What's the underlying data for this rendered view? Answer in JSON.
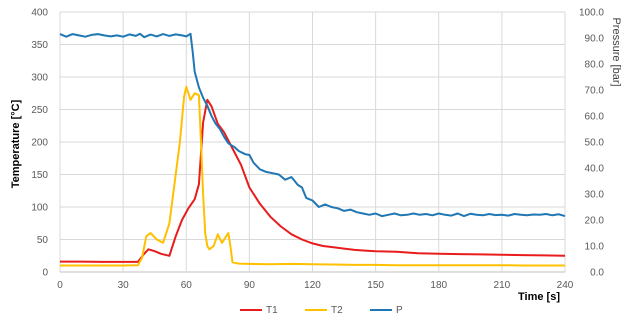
{
  "chart_data": {
    "type": "line",
    "title": "",
    "xlabel": "Time [s]",
    "ylabel_left": "Temperature [°C]",
    "ylabel_right": "Pressure [bar]",
    "xlim": [
      0,
      240
    ],
    "ylim_left": [
      0,
      400
    ],
    "ylim_right": [
      0,
      100
    ],
    "grid": true,
    "legend_position": "bottom",
    "x_ticks": [
      "0",
      "30",
      "60",
      "90",
      "120",
      "150",
      "180",
      "210",
      "240"
    ],
    "y_left_ticks": [
      "0",
      "50",
      "100",
      "150",
      "200",
      "250",
      "300",
      "350",
      "400"
    ],
    "y_right_ticks": [
      "0.0",
      "10.0",
      "20.0",
      "30.0",
      "40.0",
      "50.0",
      "60.0",
      "70.0",
      "80.0",
      "90.0",
      "100.0"
    ],
    "series": [
      {
        "name": "T1",
        "axis": "left",
        "color": "#e81c1c",
        "points": [
          [
            0,
            16
          ],
          [
            10,
            16
          ],
          [
            20,
            15.5
          ],
          [
            30,
            15.5
          ],
          [
            37,
            15.5
          ],
          [
            40,
            28
          ],
          [
            42,
            35
          ],
          [
            45,
            32
          ],
          [
            48,
            28
          ],
          [
            52,
            25
          ],
          [
            55,
            55
          ],
          [
            58,
            80
          ],
          [
            61,
            98
          ],
          [
            64,
            112
          ],
          [
            66,
            135
          ],
          [
            68,
            230
          ],
          [
            70,
            265
          ],
          [
            72,
            255
          ],
          [
            75,
            228
          ],
          [
            78,
            215
          ],
          [
            82,
            190
          ],
          [
            86,
            165
          ],
          [
            90,
            130
          ],
          [
            95,
            105
          ],
          [
            100,
            85
          ],
          [
            105,
            70
          ],
          [
            110,
            58
          ],
          [
            115,
            50
          ],
          [
            120,
            44
          ],
          [
            125,
            40
          ],
          [
            130,
            38
          ],
          [
            135,
            36
          ],
          [
            140,
            34
          ],
          [
            145,
            33
          ],
          [
            150,
            32
          ],
          [
            160,
            31
          ],
          [
            170,
            29
          ],
          [
            180,
            28
          ],
          [
            190,
            27.5
          ],
          [
            200,
            27
          ],
          [
            210,
            26.5
          ],
          [
            220,
            26
          ],
          [
            230,
            25.5
          ],
          [
            240,
            25
          ]
        ]
      },
      {
        "name": "T2",
        "axis": "left",
        "color": "#ffc000",
        "points": [
          [
            0,
            10
          ],
          [
            10,
            10
          ],
          [
            20,
            10
          ],
          [
            30,
            10
          ],
          [
            37,
            10.5
          ],
          [
            39,
            22
          ],
          [
            41,
            55
          ],
          [
            43,
            60
          ],
          [
            46,
            50
          ],
          [
            49,
            45
          ],
          [
            52,
            75
          ],
          [
            55,
            150
          ],
          [
            57,
            200
          ],
          [
            59,
            270
          ],
          [
            60,
            285
          ],
          [
            62,
            265
          ],
          [
            64,
            275
          ],
          [
            66,
            272
          ],
          [
            67,
            200
          ],
          [
            68,
            120
          ],
          [
            69,
            60
          ],
          [
            70,
            40
          ],
          [
            71,
            35
          ],
          [
            73,
            40
          ],
          [
            75,
            58
          ],
          [
            77,
            45
          ],
          [
            79,
            55
          ],
          [
            80,
            60
          ],
          [
            81,
            40
          ],
          [
            82,
            15
          ],
          [
            85,
            13
          ],
          [
            90,
            12.5
          ],
          [
            100,
            12
          ],
          [
            110,
            12.5
          ],
          [
            120,
            12
          ],
          [
            130,
            11.5
          ],
          [
            140,
            11
          ],
          [
            150,
            11
          ],
          [
            160,
            10.5
          ],
          [
            170,
            10.5
          ],
          [
            180,
            10.5
          ],
          [
            190,
            10.5
          ],
          [
            200,
            10.5
          ],
          [
            210,
            10.5
          ],
          [
            220,
            10
          ],
          [
            230,
            10
          ],
          [
            240,
            10
          ]
        ]
      },
      {
        "name": "P",
        "axis": "right",
        "color": "#1f77b4",
        "points": [
          [
            0,
            91.5
          ],
          [
            3,
            90.5
          ],
          [
            6,
            91.5
          ],
          [
            9,
            91
          ],
          [
            12,
            90.5
          ],
          [
            15,
            91.2
          ],
          [
            18,
            91.5
          ],
          [
            21,
            91
          ],
          [
            24,
            90.6
          ],
          [
            27,
            91
          ],
          [
            30,
            90.5
          ],
          [
            33,
            91.4
          ],
          [
            36,
            90.8
          ],
          [
            38,
            91.6
          ],
          [
            40,
            90.3
          ],
          [
            43,
            91.3
          ],
          [
            46,
            90.6
          ],
          [
            49,
            91.5
          ],
          [
            52,
            90.8
          ],
          [
            55,
            91.4
          ],
          [
            58,
            91
          ],
          [
            60,
            90.6
          ],
          [
            62,
            91.6
          ],
          [
            63,
            85
          ],
          [
            64,
            77
          ],
          [
            66,
            71
          ],
          [
            68,
            67
          ],
          [
            70,
            64
          ],
          [
            72,
            60
          ],
          [
            74,
            57
          ],
          [
            76,
            55
          ],
          [
            78,
            52
          ],
          [
            80,
            49.5
          ],
          [
            83,
            48
          ],
          [
            85,
            46.5
          ],
          [
            88,
            45.3
          ],
          [
            90,
            45
          ],
          [
            92,
            42
          ],
          [
            95,
            39.5
          ],
          [
            98,
            38.5
          ],
          [
            101,
            38
          ],
          [
            104,
            37.5
          ],
          [
            107,
            35.5
          ],
          [
            110,
            36.5
          ],
          [
            113,
            33.5
          ],
          [
            115,
            32.5
          ],
          [
            117,
            28.5
          ],
          [
            120,
            27.5
          ],
          [
            123,
            25
          ],
          [
            126,
            26
          ],
          [
            129,
            25
          ],
          [
            132,
            24.5
          ],
          [
            135,
            23.5
          ],
          [
            138,
            24
          ],
          [
            141,
            23
          ],
          [
            144,
            22.5
          ],
          [
            147,
            22
          ],
          [
            150,
            22.5
          ],
          [
            153,
            21.5
          ],
          [
            156,
            22
          ],
          [
            159,
            22.5
          ],
          [
            162,
            21.8
          ],
          [
            165,
            22
          ],
          [
            168,
            22.5
          ],
          [
            171,
            22
          ],
          [
            174,
            22.3
          ],
          [
            177,
            21.8
          ],
          [
            180,
            22.5
          ],
          [
            183,
            22
          ],
          [
            186,
            21.7
          ],
          [
            189,
            22.5
          ],
          [
            192,
            21.5
          ],
          [
            195,
            22.4
          ],
          [
            198,
            22
          ],
          [
            201,
            21.8
          ],
          [
            204,
            22.3
          ],
          [
            207,
            21.9
          ],
          [
            210,
            22
          ],
          [
            213,
            21.7
          ],
          [
            216,
            22.3
          ],
          [
            219,
            22
          ],
          [
            222,
            21.8
          ],
          [
            225,
            22.1
          ],
          [
            228,
            22
          ],
          [
            231,
            22.3
          ],
          [
            234,
            21.8
          ],
          [
            237,
            22.2
          ],
          [
            240,
            21.5
          ]
        ]
      }
    ]
  }
}
